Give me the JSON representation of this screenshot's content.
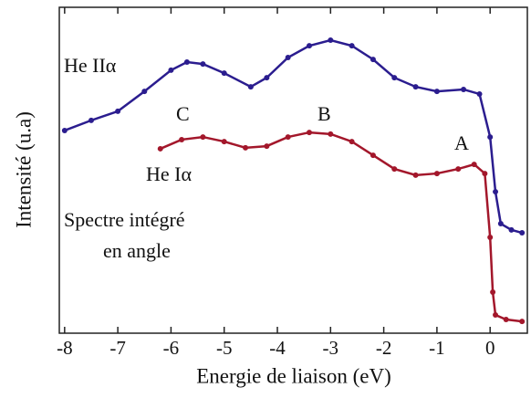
{
  "chart_data": {
    "type": "scatter",
    "xlabel": "Energie de liaison (eV)",
    "ylabel": "Intensité (u.a)",
    "xlim": [
      -8.1,
      0.7
    ],
    "xticks": [
      -8,
      -7,
      -6,
      -5,
      -4,
      -3,
      -2,
      -1,
      0
    ],
    "ylim": [
      0,
      100
    ],
    "annotations": [
      "He IIα",
      "C",
      "B",
      "A",
      "He Iα",
      "Spectre intégré",
      "en angle"
    ],
    "series": [
      {
        "color": "#2b1d8f",
        "x": [
          -8.0,
          -7.5,
          -7.0,
          -6.5,
          -6.0,
          -5.7,
          -5.4,
          -5.0,
          -4.5,
          -4.2,
          -3.8,
          -3.4,
          -3.0,
          -2.6,
          -2.2,
          -1.8,
          -1.4,
          -1.0,
          -0.5,
          -0.2,
          0.0,
          0.1,
          0.2,
          0.4,
          0.6
        ],
        "values": [
          62.2,
          65.3,
          68.1,
          74.2,
          80.7,
          83.2,
          82.6,
          79.8,
          75.6,
          78.4,
          84.6,
          88.2,
          89.9,
          88.2,
          84.0,
          78.4,
          75.6,
          74.2,
          74.8,
          73.4,
          60.2,
          43.4,
          33.6,
          31.7,
          30.8
        ]
      },
      {
        "color": "#a3172b",
        "x": [
          -6.2,
          -5.8,
          -5.4,
          -5.0,
          -4.6,
          -4.2,
          -3.8,
          -3.4,
          -3.0,
          -2.6,
          -2.2,
          -1.8,
          -1.4,
          -1.0,
          -0.6,
          -0.3,
          -0.1,
          0.0,
          0.05,
          0.1,
          0.3,
          0.6
        ],
        "values": [
          56.6,
          59.4,
          60.2,
          58.8,
          56.9,
          57.4,
          60.2,
          61.6,
          61.1,
          58.8,
          54.6,
          50.4,
          48.5,
          49.0,
          50.4,
          51.8,
          49.0,
          29.4,
          12.6,
          5.6,
          4.2,
          3.6
        ]
      }
    ]
  }
}
